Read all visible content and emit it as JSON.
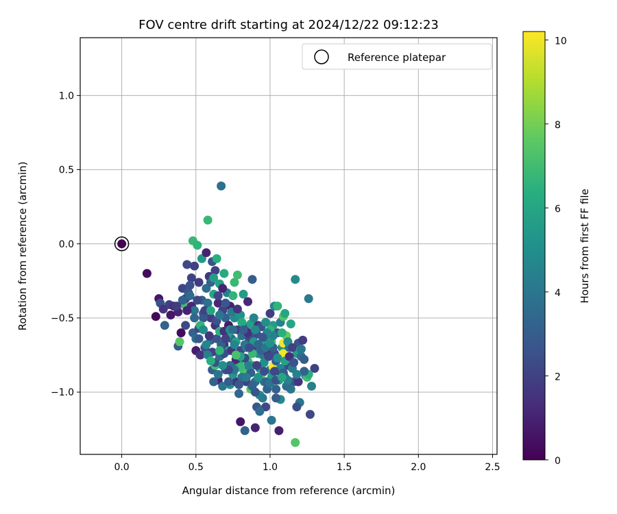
{
  "chart_data": {
    "type": "scatter",
    "title": "FOV centre drift starting at 2024/12/22 09:12:23",
    "xlabel": "Angular distance from reference (arcmin)",
    "ylabel": "Rotation from reference (arcmin)",
    "xlim": [
      -0.28,
      2.53
    ],
    "ylim": [
      -1.42,
      1.39
    ],
    "xticks": [
      "0.0",
      "0.5",
      "1.0",
      "1.5",
      "2.0",
      "2.5"
    ],
    "yticks": [
      "1.0",
      "0.5",
      "0.0",
      "−0.5",
      "−1.0"
    ],
    "grid": true,
    "legend": {
      "placement": "top-right",
      "entries": [
        "Reference platepar"
      ]
    },
    "colorbar": {
      "label": "Hours from first FF file",
      "colormap": "viridis",
      "range": [
        0,
        10.2
      ],
      "ticks": [
        "0",
        "2",
        "4",
        "6",
        "8",
        "10"
      ]
    },
    "reference_point": {
      "x": 0.0,
      "y": 0.0
    },
    "points": [
      [
        0.0,
        0.0,
        0.0
      ],
      [
        0.17,
        -0.2,
        0.3
      ],
      [
        0.23,
        -0.49,
        0.2
      ],
      [
        0.25,
        -0.37,
        0.6
      ],
      [
        0.26,
        -0.4,
        2.5
      ],
      [
        0.29,
        -0.55,
        3.2
      ],
      [
        0.32,
        -0.41,
        2.0
      ],
      [
        0.35,
        -0.42,
        1.4
      ],
      [
        0.38,
        -0.46,
        1.0
      ],
      [
        0.38,
        -0.69,
        3.0
      ],
      [
        0.39,
        -0.66,
        7.5
      ],
      [
        0.4,
        -0.6,
        0.3
      ],
      [
        0.41,
        -0.3,
        2.2
      ],
      [
        0.42,
        -0.41,
        7.0
      ],
      [
        0.43,
        -0.37,
        1.8
      ],
      [
        0.44,
        -0.14,
        2.2
      ],
      [
        0.45,
        -0.33,
        2.8
      ],
      [
        0.46,
        -0.35,
        3.5
      ],
      [
        0.47,
        -0.23,
        2.0
      ],
      [
        0.47,
        -0.42,
        1.2
      ],
      [
        0.48,
        0.02,
        6.8
      ],
      [
        0.48,
        -0.6,
        3.2
      ],
      [
        0.49,
        -0.15,
        2.0
      ],
      [
        0.49,
        -0.45,
        4.0
      ],
      [
        0.5,
        -0.72,
        0.8
      ],
      [
        0.5,
        -0.64,
        3.6
      ],
      [
        0.51,
        -0.01,
        6.6
      ],
      [
        0.52,
        -0.26,
        1.8
      ],
      [
        0.52,
        -0.57,
        2.2
      ],
      [
        0.53,
        -0.75,
        1.5
      ],
      [
        0.54,
        -0.1,
        5.5
      ],
      [
        0.54,
        -0.38,
        3.0
      ],
      [
        0.55,
        -0.47,
        2.4
      ],
      [
        0.56,
        -0.7,
        2.6
      ],
      [
        0.57,
        -0.06,
        1.0
      ],
      [
        0.57,
        -0.3,
        3.6
      ],
      [
        0.58,
        -0.4,
        3.8
      ],
      [
        0.58,
        0.16,
        6.8
      ],
      [
        0.59,
        -0.22,
        1.6
      ],
      [
        0.6,
        -0.5,
        1.8
      ],
      [
        0.6,
        -0.65,
        3.4
      ],
      [
        0.61,
        -0.85,
        3.0
      ],
      [
        0.61,
        -0.12,
        2.5
      ],
      [
        0.62,
        -0.34,
        6.0
      ],
      [
        0.63,
        -0.18,
        2.0
      ],
      [
        0.63,
        -0.55,
        1.4
      ],
      [
        0.63,
        -0.82,
        7.0
      ],
      [
        0.64,
        -0.1,
        6.4
      ],
      [
        0.64,
        -0.64,
        2.6
      ],
      [
        0.65,
        -0.92,
        0.9
      ],
      [
        0.65,
        -0.4,
        1.2
      ],
      [
        0.66,
        -0.27,
        5.8
      ],
      [
        0.66,
        -0.59,
        6.5
      ],
      [
        0.67,
        0.39,
        3.8
      ],
      [
        0.67,
        -0.75,
        2.2
      ],
      [
        0.68,
        -0.45,
        2.0
      ],
      [
        0.68,
        -0.96,
        4.0
      ],
      [
        0.69,
        -0.2,
        6.2
      ],
      [
        0.69,
        -0.68,
        1.4
      ],
      [
        0.7,
        -0.5,
        3.2
      ],
      [
        0.7,
        -0.85,
        2.8
      ],
      [
        0.71,
        -0.33,
        4.5
      ],
      [
        0.72,
        -0.55,
        0.8
      ],
      [
        0.72,
        -0.72,
        5.6
      ],
      [
        0.73,
        -0.42,
        1.0
      ],
      [
        0.73,
        -0.95,
        5.2
      ],
      [
        0.74,
        -0.64,
        3.4
      ],
      [
        0.75,
        -0.35,
        6.6
      ],
      [
        0.75,
        -0.82,
        3.0
      ],
      [
        0.76,
        -0.5,
        4.8
      ],
      [
        0.76,
        -0.26,
        6.8
      ],
      [
        0.77,
        -0.66,
        6.0
      ],
      [
        0.77,
        -0.93,
        1.6
      ],
      [
        0.78,
        -0.21,
        7.0
      ],
      [
        0.78,
        -0.58,
        1.8
      ],
      [
        0.79,
        -0.8,
        5.4
      ],
      [
        0.79,
        -1.01,
        3.4
      ],
      [
        0.8,
        -0.48,
        5.2
      ],
      [
        0.8,
        -0.72,
        2.2
      ],
      [
        0.8,
        -1.2,
        0.6
      ],
      [
        0.81,
        -0.62,
        3.8
      ],
      [
        0.82,
        -0.85,
        7.2
      ],
      [
        0.82,
        -0.34,
        5.6
      ],
      [
        0.83,
        -0.56,
        2.6
      ],
      [
        0.83,
        -1.26,
        3.2
      ],
      [
        0.84,
        -0.7,
        4.2
      ],
      [
        0.84,
        -0.93,
        2.0
      ],
      [
        0.85,
        -0.39,
        1.2
      ],
      [
        0.85,
        -0.79,
        7.0
      ],
      [
        0.86,
        -0.64,
        2.2
      ],
      [
        0.87,
        -0.54,
        5.8
      ],
      [
        0.87,
        -0.98,
        7.4
      ],
      [
        0.88,
        -0.82,
        6.2
      ],
      [
        0.88,
        -0.24,
        3.0
      ],
      [
        0.89,
        -0.71,
        1.8
      ],
      [
        0.89,
        -0.5,
        4.6
      ],
      [
        0.9,
        -0.93,
        3.6
      ],
      [
        0.9,
        -1.24,
        1.0
      ],
      [
        0.91,
        -0.61,
        2.4
      ],
      [
        0.91,
        -1.1,
        2.8
      ],
      [
        0.92,
        -0.74,
        5.0
      ],
      [
        0.92,
        -0.55,
        1.6
      ],
      [
        0.93,
        -0.84,
        4.4
      ],
      [
        0.93,
        -1.02,
        4.8
      ],
      [
        0.94,
        -0.67,
        6.0
      ],
      [
        0.94,
        -0.56,
        2.6
      ],
      [
        0.95,
        -0.87,
        7.0
      ],
      [
        0.95,
        -0.75,
        4.2
      ],
      [
        0.96,
        -0.63,
        2.0
      ],
      [
        0.96,
        -0.93,
        4.6
      ],
      [
        0.97,
        -0.53,
        5.0
      ],
      [
        0.97,
        -1.1,
        2.2
      ],
      [
        0.98,
        -0.73,
        1.4
      ],
      [
        0.98,
        -0.98,
        3.2
      ],
      [
        0.99,
        -0.64,
        3.8
      ],
      [
        1.0,
        -0.85,
        4.6
      ],
      [
        1.0,
        -0.47,
        1.8
      ],
      [
        1.01,
        -0.66,
        7.6
      ],
      [
        1.01,
        -1.19,
        4.0
      ],
      [
        1.02,
        -0.83,
        10.2
      ],
      [
        1.02,
        -0.55,
        5.6
      ],
      [
        1.03,
        -0.42,
        4.6
      ],
      [
        1.03,
        -0.74,
        2.4
      ],
      [
        1.04,
        -0.98,
        3.2
      ],
      [
        1.05,
        -0.6,
        2.8
      ],
      [
        1.05,
        -0.42,
        6.6
      ],
      [
        1.06,
        -0.86,
        1.6
      ],
      [
        1.06,
        -1.26,
        0.9
      ],
      [
        1.07,
        -0.53,
        4.4
      ],
      [
        1.08,
        -0.7,
        5.2
      ],
      [
        1.09,
        -0.67,
        10.0
      ],
      [
        1.09,
        -0.74,
        10.0
      ],
      [
        1.09,
        -0.49,
        7.4
      ],
      [
        1.1,
        -0.9,
        3.8
      ],
      [
        1.1,
        -0.47,
        6.0
      ],
      [
        1.11,
        -0.62,
        7.8
      ],
      [
        1.12,
        -0.82,
        2.2
      ],
      [
        1.13,
        -0.7,
        3.4
      ],
      [
        1.14,
        -0.54,
        6.0
      ],
      [
        1.15,
        -0.84,
        4.2
      ],
      [
        1.16,
        -0.93,
        2.8
      ],
      [
        1.17,
        -0.24,
        4.8
      ],
      [
        1.17,
        -1.34,
        7.4
      ],
      [
        1.18,
        -0.74,
        5.6
      ],
      [
        1.19,
        -0.67,
        2.6
      ],
      [
        1.19,
        -0.93,
        1.6
      ],
      [
        1.2,
        -1.07,
        4.0
      ],
      [
        1.21,
        -0.76,
        3.6
      ],
      [
        1.22,
        -0.65,
        1.8
      ],
      [
        1.24,
        -0.89,
        4.2
      ],
      [
        1.25,
        -0.9,
        7.0
      ],
      [
        1.26,
        -0.37,
        4.2
      ],
      [
        1.27,
        -1.15,
        2.2
      ],
      [
        1.28,
        -0.96,
        4.4
      ],
      [
        1.3,
        -0.84,
        2.0
      ],
      [
        1.26,
        -0.88,
        6.4
      ],
      [
        1.23,
        -0.78,
        3.0
      ],
      [
        1.18,
        -1.1,
        2.4
      ],
      [
        1.14,
        -0.98,
        4.0
      ],
      [
        1.11,
        -0.96,
        3.6
      ],
      [
        1.07,
        -1.05,
        4.8
      ],
      [
        1.04,
        -1.04,
        3.0
      ],
      [
        1.01,
        -0.9,
        5.4
      ],
      [
        0.97,
        -0.93,
        3.4
      ],
      [
        0.95,
        -1.04,
        4.2
      ],
      [
        0.93,
        -1.13,
        3.6
      ],
      [
        0.9,
        -1.0,
        2.6
      ],
      [
        0.87,
        -0.87,
        3.0
      ],
      [
        0.85,
        -0.82,
        4.4
      ],
      [
        0.83,
        -0.77,
        2.2
      ],
      [
        0.81,
        -0.9,
        3.8
      ],
      [
        0.79,
        -0.95,
        2.8
      ],
      [
        0.77,
        -0.78,
        1.2
      ],
      [
        0.75,
        -0.88,
        5.4
      ],
      [
        0.73,
        -0.82,
        3.6
      ],
      [
        0.71,
        -0.62,
        5.8
      ],
      [
        0.69,
        -0.59,
        1.4
      ],
      [
        0.67,
        -0.68,
        3.0
      ],
      [
        0.65,
        -0.88,
        4.0
      ],
      [
        0.63,
        -0.8,
        2.4
      ],
      [
        0.61,
        -0.73,
        2.0
      ],
      [
        0.59,
        -0.62,
        1.6
      ],
      [
        0.57,
        -0.68,
        4.6
      ],
      [
        0.55,
        -0.5,
        2.8
      ],
      [
        0.53,
        -0.55,
        6.6
      ],
      [
        0.51,
        -0.38,
        2.2
      ],
      [
        0.49,
        -0.5,
        3.4
      ],
      [
        0.46,
        -0.28,
        2.6
      ],
      [
        0.44,
        -0.45,
        1.0
      ],
      [
        0.43,
        -0.55,
        2.2
      ],
      [
        0.41,
        -0.38,
        3.2
      ],
      [
        0.37,
        -0.42,
        1.8
      ],
      [
        0.33,
        -0.48,
        0.6
      ],
      [
        0.28,
        -0.44,
        1.6
      ],
      [
        0.6,
        -0.26,
        3.2
      ],
      [
        0.62,
        -0.23,
        5.6
      ],
      [
        0.65,
        -0.35,
        2.2
      ],
      [
        0.68,
        -0.3,
        1.0
      ],
      [
        0.7,
        -0.4,
        2.8
      ],
      [
        0.74,
        -0.46,
        4.2
      ],
      [
        0.78,
        -0.44,
        1.6
      ],
      [
        0.81,
        -0.53,
        6.2
      ],
      [
        0.86,
        -0.6,
        3.0
      ],
      [
        0.89,
        -0.66,
        5.4
      ],
      [
        0.92,
        -0.68,
        3.4
      ],
      [
        0.96,
        -0.8,
        5.0
      ],
      [
        0.99,
        -0.76,
        2.2
      ],
      [
        1.0,
        -0.58,
        6.6
      ],
      [
        1.02,
        -0.62,
        4.4
      ],
      [
        1.04,
        -0.79,
        2.8
      ],
      [
        1.07,
        -0.84,
        4.6
      ],
      [
        1.1,
        -0.79,
        5.8
      ],
      [
        1.13,
        -0.76,
        1.4
      ],
      [
        1.16,
        -0.8,
        2.6
      ],
      [
        1.21,
        -0.71,
        4.0
      ],
      [
        1.23,
        -0.86,
        3.2
      ],
      [
        0.58,
        -0.75,
        4.4
      ],
      [
        0.6,
        -0.79,
        6.4
      ],
      [
        0.62,
        -0.93,
        3.2
      ],
      [
        0.66,
        -0.76,
        3.6
      ],
      [
        0.69,
        -0.74,
        2.4
      ],
      [
        0.72,
        -0.93,
        3.0
      ],
      [
        0.74,
        -0.72,
        1.6
      ],
      [
        0.76,
        -0.68,
        4.6
      ],
      [
        0.8,
        -0.76,
        5.8
      ],
      [
        0.83,
        -0.68,
        4.0
      ],
      [
        0.85,
        -0.6,
        1.4
      ],
      [
        0.88,
        -0.74,
        6.8
      ],
      [
        0.91,
        -0.82,
        2.0
      ],
      [
        0.94,
        -0.72,
        3.2
      ],
      [
        0.98,
        -0.6,
        4.6
      ],
      [
        1.02,
        -0.7,
        3.0
      ],
      [
        1.05,
        -0.77,
        5.0
      ],
      [
        1.08,
        -0.6,
        6.4
      ],
      [
        1.12,
        -0.66,
        4.8
      ],
      [
        1.15,
        -0.7,
        2.0
      ],
      [
        1.18,
        -0.88,
        4.4
      ],
      [
        0.52,
        -0.64,
        2.8
      ],
      [
        0.55,
        -0.58,
        4.8
      ],
      [
        0.56,
        -0.45,
        2.0
      ],
      [
        0.6,
        -0.45,
        6.0
      ],
      [
        0.64,
        -0.52,
        2.6
      ],
      [
        0.66,
        -0.48,
        4.0
      ],
      [
        0.7,
        -0.64,
        2.0
      ],
      [
        0.73,
        -0.58,
        5.0
      ],
      [
        0.75,
        -0.58,
        3.6
      ],
      [
        0.82,
        -0.58,
        3.0
      ],
      [
        0.86,
        -0.7,
        2.4
      ],
      [
        0.9,
        -0.58,
        4.8
      ],
      [
        0.95,
        -0.63,
        2.8
      ],
      [
        0.97,
        -0.7,
        4.0
      ],
      [
        1.0,
        -0.67,
        5.2
      ],
      [
        1.03,
        -0.86,
        2.2
      ],
      [
        1.06,
        -0.92,
        5.4
      ],
      [
        1.09,
        -0.87,
        3.0
      ],
      [
        1.12,
        -0.92,
        4.4
      ],
      [
        0.77,
        -0.75,
        7.2
      ],
      [
        0.8,
        -0.83,
        6.8
      ],
      [
        0.84,
        -0.9,
        4.2
      ],
      [
        0.88,
        -0.96,
        3.2
      ],
      [
        0.92,
        -0.9,
        5.2
      ],
      [
        0.96,
        -0.86,
        2.4
      ],
      [
        1.0,
        -0.94,
        4.0
      ],
      [
        1.04,
        -0.92,
        2.6
      ],
      [
        1.08,
        -0.9,
        6.0
      ],
      [
        0.76,
        -0.85,
        4.0
      ],
      [
        0.72,
        -0.85,
        2.2
      ],
      [
        0.68,
        -0.82,
        5.0
      ],
      [
        0.66,
        -0.72,
        6.6
      ]
    ]
  }
}
